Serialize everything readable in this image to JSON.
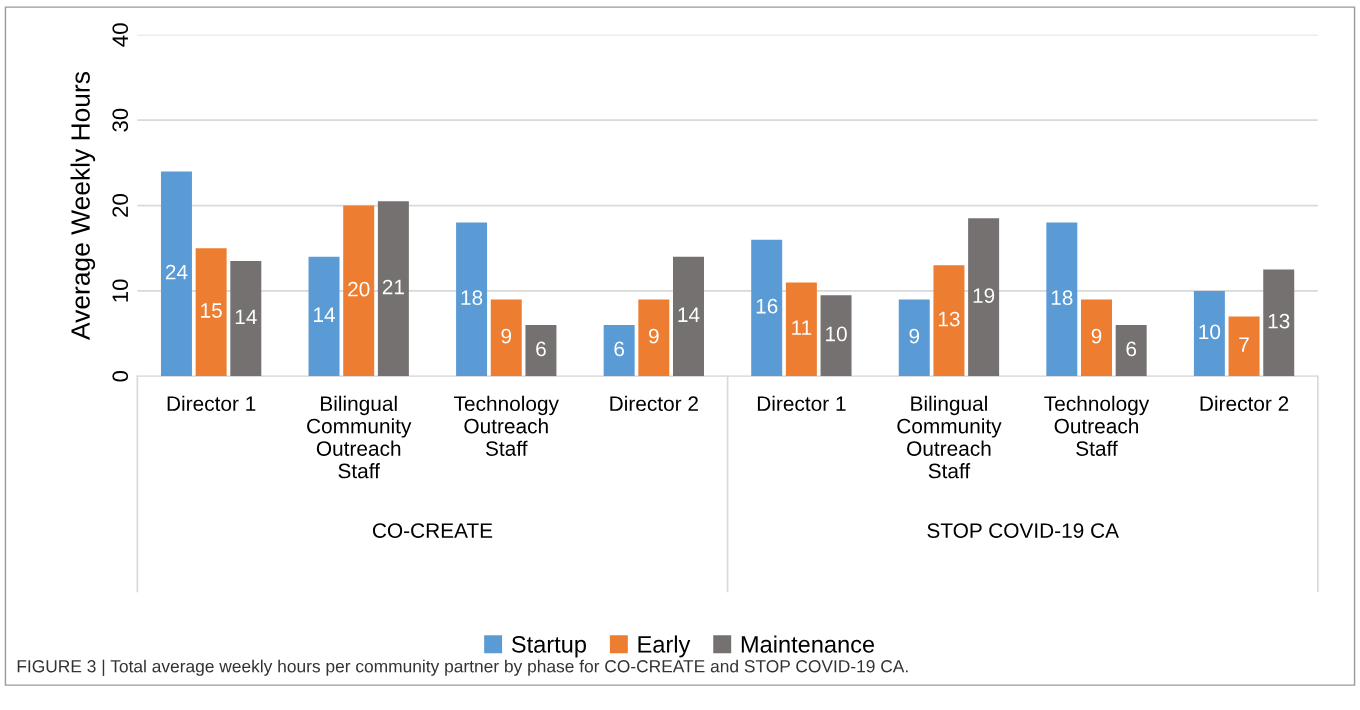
{
  "chart_data": {
    "type": "bar",
    "ylabel": "Average Weekly Hours",
    "categories": [
      "Director 1",
      "Bilingual Community Outreach Staff",
      "Technology Outreach Staff",
      "Director 2",
      "Director 1",
      "Bilingual Community Outreach Staff",
      "Technology Outreach Staff",
      "Director 2"
    ],
    "series": [
      {
        "name": "Startup",
        "color": "#5b9bd5",
        "values": [
          24,
          14,
          18,
          6,
          16,
          9,
          18,
          10
        ],
        "value_labels": [
          "24",
          "14",
          "18",
          "6",
          "16",
          "9",
          "18",
          "10"
        ]
      },
      {
        "name": "Early",
        "color": "#ed7d31",
        "values": [
          15,
          20,
          9,
          9,
          11,
          13,
          9,
          7
        ],
        "value_labels": [
          "15",
          "20",
          "9",
          "9",
          "11",
          "13",
          "9",
          "7"
        ]
      },
      {
        "name": "Maintenance",
        "color": "#757171",
        "values": [
          13.5,
          20.5,
          6,
          14,
          9.5,
          18.5,
          6,
          12.5
        ],
        "value_labels": [
          "14",
          "21",
          "6",
          "14",
          "10",
          "19",
          "6",
          "13"
        ]
      }
    ],
    "ylim": [
      0,
      40
    ],
    "yticks": [
      0,
      10,
      20,
      30,
      40
    ],
    "grid": "y",
    "legend": "bottom",
    "annotations": [
      "CO-CREATE",
      "STOP COVID-19 CA",
      "FIGURE 3 | Total average weekly hours per community partner by phase for CO-CREATE and STOP COVID-19 CA."
    ]
  }
}
